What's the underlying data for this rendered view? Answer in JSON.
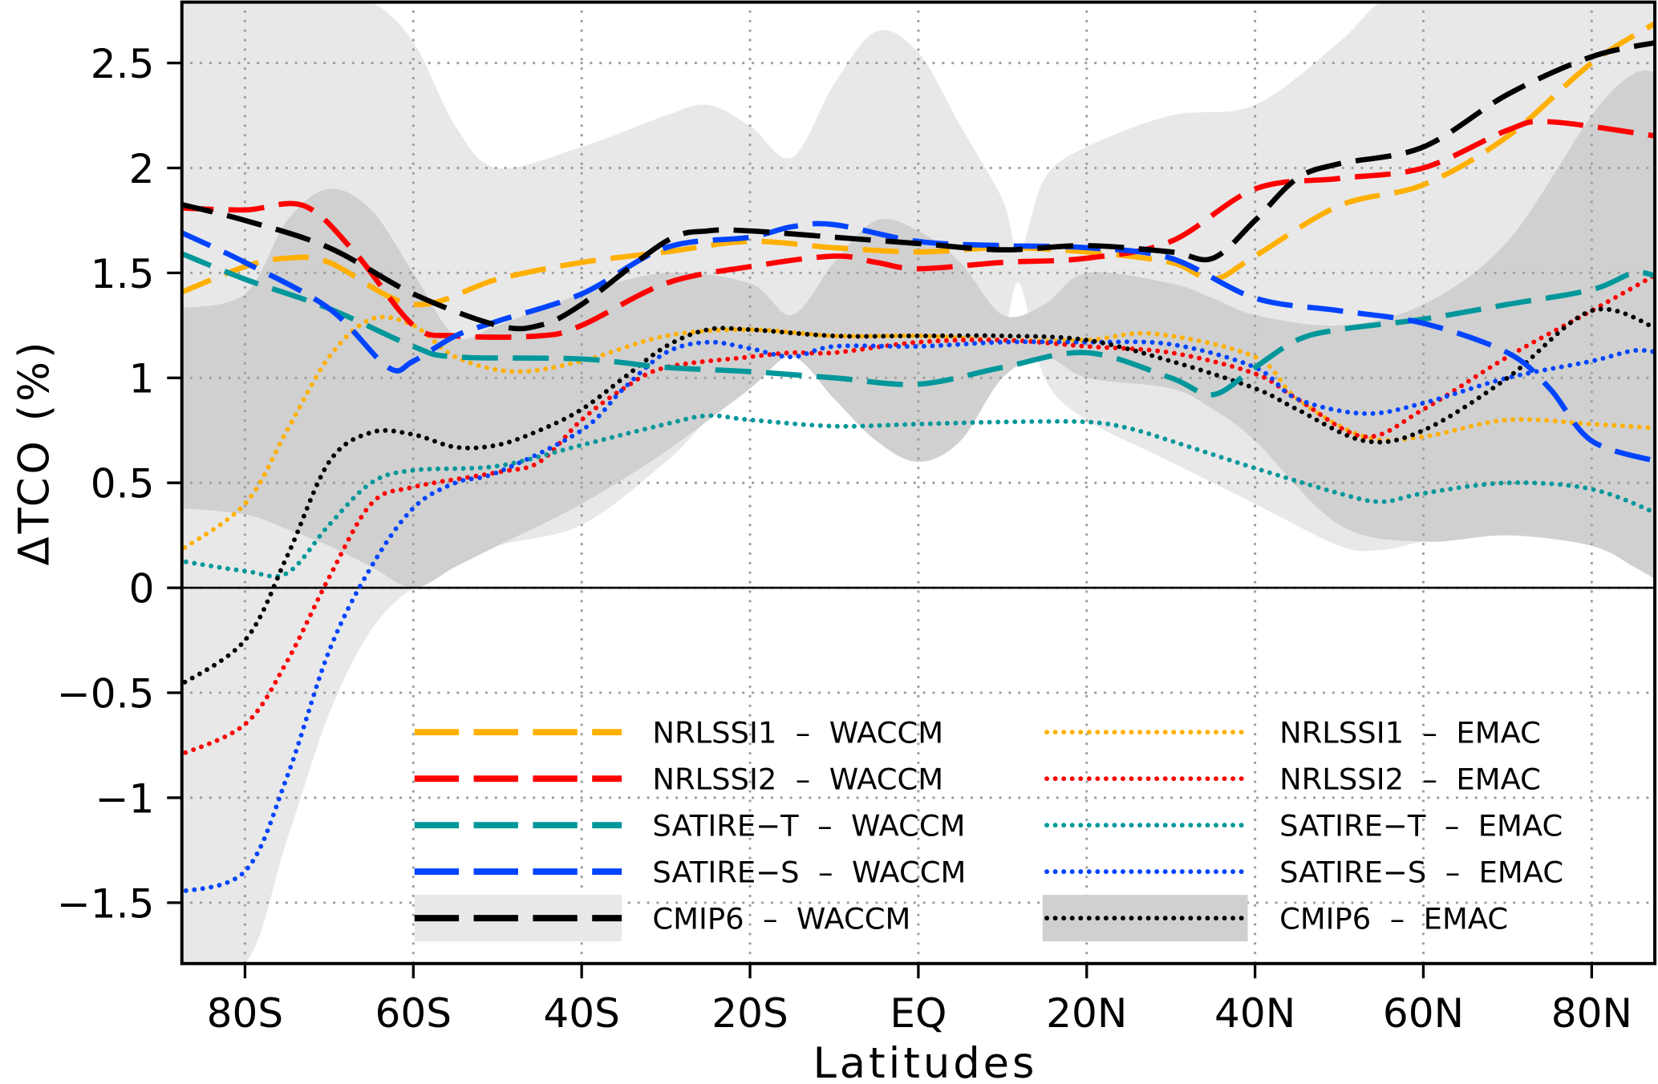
{
  "chart_data": {
    "type": "line",
    "xlabel": "Latitudes",
    "ylabel": "ΔTCO (%)",
    "xlim": [
      -87.5,
      87.5
    ],
    "ylim": [
      -1.79,
      2.79
    ],
    "grid": true,
    "legend_position": "bottom-center",
    "x_ticks": [
      {
        "value": -80,
        "label": "80S"
      },
      {
        "value": -60,
        "label": "60S"
      },
      {
        "value": -40,
        "label": "40S"
      },
      {
        "value": -20,
        "label": "20S"
      },
      {
        "value": 0,
        "label": "EQ"
      },
      {
        "value": 20,
        "label": "20N"
      },
      {
        "value": 40,
        "label": "40N"
      },
      {
        "value": 60,
        "label": "60N"
      },
      {
        "value": 80,
        "label": "80N"
      }
    ],
    "y_ticks": [
      {
        "value": 2.5,
        "label": "2.5"
      },
      {
        "value": 2,
        "label": "2"
      },
      {
        "value": 1.5,
        "label": "1.5"
      },
      {
        "value": 1,
        "label": "1"
      },
      {
        "value": 0.5,
        "label": "0.5"
      },
      {
        "value": 0,
        "label": "0"
      },
      {
        "value": -0.5,
        "label": "−0.5"
      },
      {
        "value": -1,
        "label": "−1"
      },
      {
        "value": -1.5,
        "label": "−1.5"
      }
    ],
    "bands": [
      {
        "name": "CMIP6 - WACCM spread",
        "color": "#e8e8e8",
        "x": [
          -88,
          -80,
          -75,
          -70,
          -65,
          -60,
          -55,
          -50,
          -40,
          -30,
          -25,
          -20,
          -15,
          -10,
          -5,
          0,
          5,
          10,
          12,
          15,
          20,
          30,
          40,
          50,
          55,
          60,
          70,
          80,
          88
        ],
        "upper": [
          2.79,
          2.79,
          2.79,
          2.79,
          2.79,
          2.6,
          2.2,
          2.0,
          2.1,
          2.25,
          2.3,
          2.2,
          2.05,
          2.4,
          2.65,
          2.55,
          2.2,
          1.85,
          1.6,
          1.95,
          2.1,
          2.25,
          2.3,
          2.6,
          2.79,
          2.79,
          2.79,
          2.79,
          2.79
        ],
        "lower": [
          -1.79,
          -1.79,
          -1.2,
          -0.6,
          -0.2,
          0.0,
          0.1,
          0.2,
          0.3,
          0.6,
          0.8,
          0.95,
          1.2,
          1.1,
          0.8,
          0.6,
          0.8,
          1.2,
          1.45,
          1.0,
          0.8,
          0.6,
          0.4,
          0.2,
          0.18,
          0.22,
          0.28,
          0.2,
          0.05
        ]
      },
      {
        "name": "CMIP6 - EMAC spread",
        "color": "#d0d0d0",
        "x": [
          -88,
          -80,
          -75,
          -70,
          -65,
          -60,
          -55,
          -50,
          -40,
          -30,
          -20,
          -15,
          -10,
          -5,
          0,
          5,
          10,
          15,
          20,
          30,
          35,
          40,
          50,
          60,
          70,
          80,
          85,
          88
        ],
        "upper": [
          1.33,
          1.4,
          1.75,
          1.9,
          1.8,
          1.5,
          1.2,
          1.25,
          1.4,
          1.5,
          1.45,
          1.3,
          1.55,
          1.75,
          1.7,
          1.55,
          1.3,
          1.35,
          1.5,
          1.45,
          1.38,
          1.3,
          1.25,
          1.35,
          1.65,
          2.25,
          2.45,
          2.45
        ],
        "lower": [
          0.38,
          0.35,
          0.28,
          0.2,
          0.1,
          0.0,
          0.1,
          0.2,
          0.4,
          0.65,
          0.95,
          1.1,
          0.9,
          0.7,
          0.6,
          0.7,
          1.0,
          1.1,
          1.0,
          0.95,
          0.85,
          0.7,
          0.3,
          0.22,
          0.25,
          0.2,
          0.1,
          0.03
        ]
      }
    ],
    "series": [
      {
        "name": "NRLSSI1 - WACCM",
        "label": "NRLSSI1  –  WACCM",
        "color": "#ffb000",
        "style": "dashed",
        "x": [
          -88,
          -80,
          -75,
          -70,
          -60,
          -50,
          -40,
          -30,
          -20,
          -10,
          0,
          10,
          20,
          30,
          35,
          40,
          50,
          60,
          70,
          80,
          88
        ],
        "y": [
          1.4,
          1.53,
          1.57,
          1.55,
          1.35,
          1.47,
          1.55,
          1.6,
          1.65,
          1.62,
          1.6,
          1.62,
          1.6,
          1.55,
          1.47,
          1.58,
          1.82,
          1.92,
          2.15,
          2.5,
          2.7
        ]
      },
      {
        "name": "NRLSSI2 - WACCM",
        "label": "NRLSSI2  –  WACCM",
        "color": "#ff0000",
        "style": "dashed",
        "x": [
          -88,
          -80,
          -73,
          -67,
          -60,
          -55,
          -45,
          -40,
          -30,
          -20,
          -10,
          -5,
          0,
          10,
          20,
          30,
          40,
          50,
          60,
          70,
          75,
          88
        ],
        "y": [
          1.81,
          1.8,
          1.82,
          1.6,
          1.25,
          1.2,
          1.2,
          1.25,
          1.45,
          1.53,
          1.58,
          1.55,
          1.52,
          1.55,
          1.57,
          1.65,
          1.9,
          1.95,
          2.0,
          2.18,
          2.22,
          2.15
        ]
      },
      {
        "name": "SATIRE-T - WACCM",
        "label": "SATIRE−T  –  WACCM",
        "color": "#00979b",
        "style": "dashed",
        "x": [
          -88,
          -80,
          -70,
          -60,
          -55,
          -40,
          -30,
          -20,
          -10,
          0,
          10,
          20,
          30,
          35,
          40,
          45,
          50,
          60,
          70,
          80,
          85,
          88
        ],
        "y": [
          1.6,
          1.47,
          1.33,
          1.15,
          1.1,
          1.09,
          1.05,
          1.03,
          1.0,
          0.97,
          1.05,
          1.12,
          1.0,
          0.92,
          1.05,
          1.18,
          1.23,
          1.28,
          1.35,
          1.42,
          1.5,
          1.48
        ]
      },
      {
        "name": "SATIRE-S - WACCM",
        "label": "SATIRE−S  –  WACCM",
        "color": "#0044ff",
        "style": "dashed",
        "x": [
          -88,
          -80,
          -70,
          -63,
          -60,
          -55,
          -50,
          -40,
          -30,
          -20,
          -15,
          -10,
          0,
          10,
          20,
          30,
          40,
          50,
          60,
          70,
          75,
          80,
          88
        ],
        "y": [
          1.7,
          1.55,
          1.33,
          1.05,
          1.08,
          1.2,
          1.27,
          1.4,
          1.62,
          1.67,
          1.72,
          1.73,
          1.65,
          1.63,
          1.62,
          1.57,
          1.38,
          1.32,
          1.26,
          1.12,
          0.95,
          0.7,
          0.6
        ]
      },
      {
        "name": "CMIP6 - WACCM",
        "label": "CMIP6  –  WACCM",
        "color": "#000000",
        "style": "dashed",
        "x": [
          -88,
          -80,
          -70,
          -60,
          -50,
          -45,
          -40,
          -30,
          -25,
          -20,
          -10,
          0,
          10,
          20,
          30,
          35,
          40,
          45,
          50,
          60,
          70,
          80,
          88
        ],
        "y": [
          1.83,
          1.75,
          1.62,
          1.4,
          1.25,
          1.25,
          1.35,
          1.65,
          1.7,
          1.7,
          1.67,
          1.64,
          1.61,
          1.63,
          1.6,
          1.57,
          1.75,
          1.95,
          2.02,
          2.1,
          2.35,
          2.53,
          2.6
        ]
      },
      {
        "name": "NRLSSI1 - EMAC",
        "label": "NRLSSI1  –  EMAC",
        "color": "#ffb000",
        "style": "dotted",
        "x": [
          -88,
          -80,
          -75,
          -70,
          -65,
          -60,
          -55,
          -48,
          -40,
          -30,
          -20,
          -10,
          0,
          10,
          20,
          28,
          40,
          45,
          53,
          60,
          70,
          80,
          88
        ],
        "y": [
          0.17,
          0.4,
          0.75,
          1.1,
          1.28,
          1.25,
          1.1,
          1.03,
          1.08,
          1.2,
          1.23,
          1.2,
          1.2,
          1.18,
          1.18,
          1.21,
          1.1,
          0.9,
          0.72,
          0.72,
          0.8,
          0.78,
          0.76
        ]
      },
      {
        "name": "NRLSSI2 - EMAC",
        "label": "NRLSSI2  –  EMAC",
        "color": "#ff0000",
        "style": "dotted",
        "x": [
          -88,
          -80,
          -75,
          -70,
          -65,
          -60,
          -50,
          -45,
          -40,
          -35,
          -30,
          -20,
          -15,
          -10,
          0,
          10,
          20,
          30,
          40,
          45,
          53,
          60,
          70,
          80,
          88
        ],
        "y": [
          -0.8,
          -0.65,
          -0.35,
          0.05,
          0.4,
          0.48,
          0.55,
          0.6,
          0.8,
          0.95,
          1.05,
          1.1,
          1.12,
          1.12,
          1.17,
          1.18,
          1.15,
          1.12,
          1.02,
          0.9,
          0.72,
          0.85,
          1.1,
          1.32,
          1.5
        ]
      },
      {
        "name": "SATIRE-T - EMAC",
        "label": "SATIRE−T  –  EMAC",
        "color": "#00979b",
        "style": "dotted",
        "x": [
          -88,
          -80,
          -75,
          -70,
          -65,
          -60,
          -50,
          -40,
          -30,
          -25,
          -20,
          -10,
          0,
          10,
          20,
          25,
          30,
          40,
          50,
          55,
          60,
          70,
          80,
          88
        ],
        "y": [
          0.13,
          0.08,
          0.07,
          0.3,
          0.5,
          0.56,
          0.58,
          0.68,
          0.78,
          0.82,
          0.8,
          0.77,
          0.78,
          0.79,
          0.79,
          0.76,
          0.7,
          0.57,
          0.45,
          0.41,
          0.45,
          0.5,
          0.47,
          0.35
        ]
      },
      {
        "name": "SATIRE-S - EMAC",
        "label": "SATIRE−S  –  EMAC",
        "color": "#0044ff",
        "style": "dotted",
        "x": [
          -88,
          -80,
          -75,
          -70,
          -65,
          -60,
          -55,
          -50,
          -40,
          -35,
          -30,
          -25,
          -20,
          -15,
          -10,
          0,
          10,
          20,
          30,
          40,
          45,
          53,
          60,
          70,
          80,
          85,
          88
        ],
        "y": [
          -1.45,
          -1.35,
          -0.9,
          -0.3,
          0.1,
          0.38,
          0.5,
          0.55,
          0.75,
          0.95,
          1.12,
          1.17,
          1.14,
          1.1,
          1.15,
          1.15,
          1.17,
          1.17,
          1.16,
          1.05,
          0.9,
          0.83,
          0.88,
          1.0,
          1.08,
          1.13,
          1.12
        ]
      },
      {
        "name": "CMIP6 - EMAC",
        "label": "CMIP6  –  EMAC",
        "color": "#000000",
        "style": "dotted",
        "x": [
          -88,
          -80,
          -75,
          -70,
          -65,
          -60,
          -55,
          -50,
          -45,
          -40,
          -35,
          -30,
          -25,
          -20,
          -10,
          0,
          10,
          20,
          30,
          40,
          45,
          53,
          60,
          70,
          80,
          88
        ],
        "y": [
          -0.47,
          -0.25,
          0.15,
          0.6,
          0.74,
          0.73,
          0.67,
          0.68,
          0.75,
          0.85,
          1.0,
          1.15,
          1.23,
          1.23,
          1.2,
          1.2,
          1.2,
          1.18,
          1.08,
          0.95,
          0.85,
          0.7,
          0.75,
          1.0,
          1.32,
          1.23
        ]
      }
    ]
  }
}
